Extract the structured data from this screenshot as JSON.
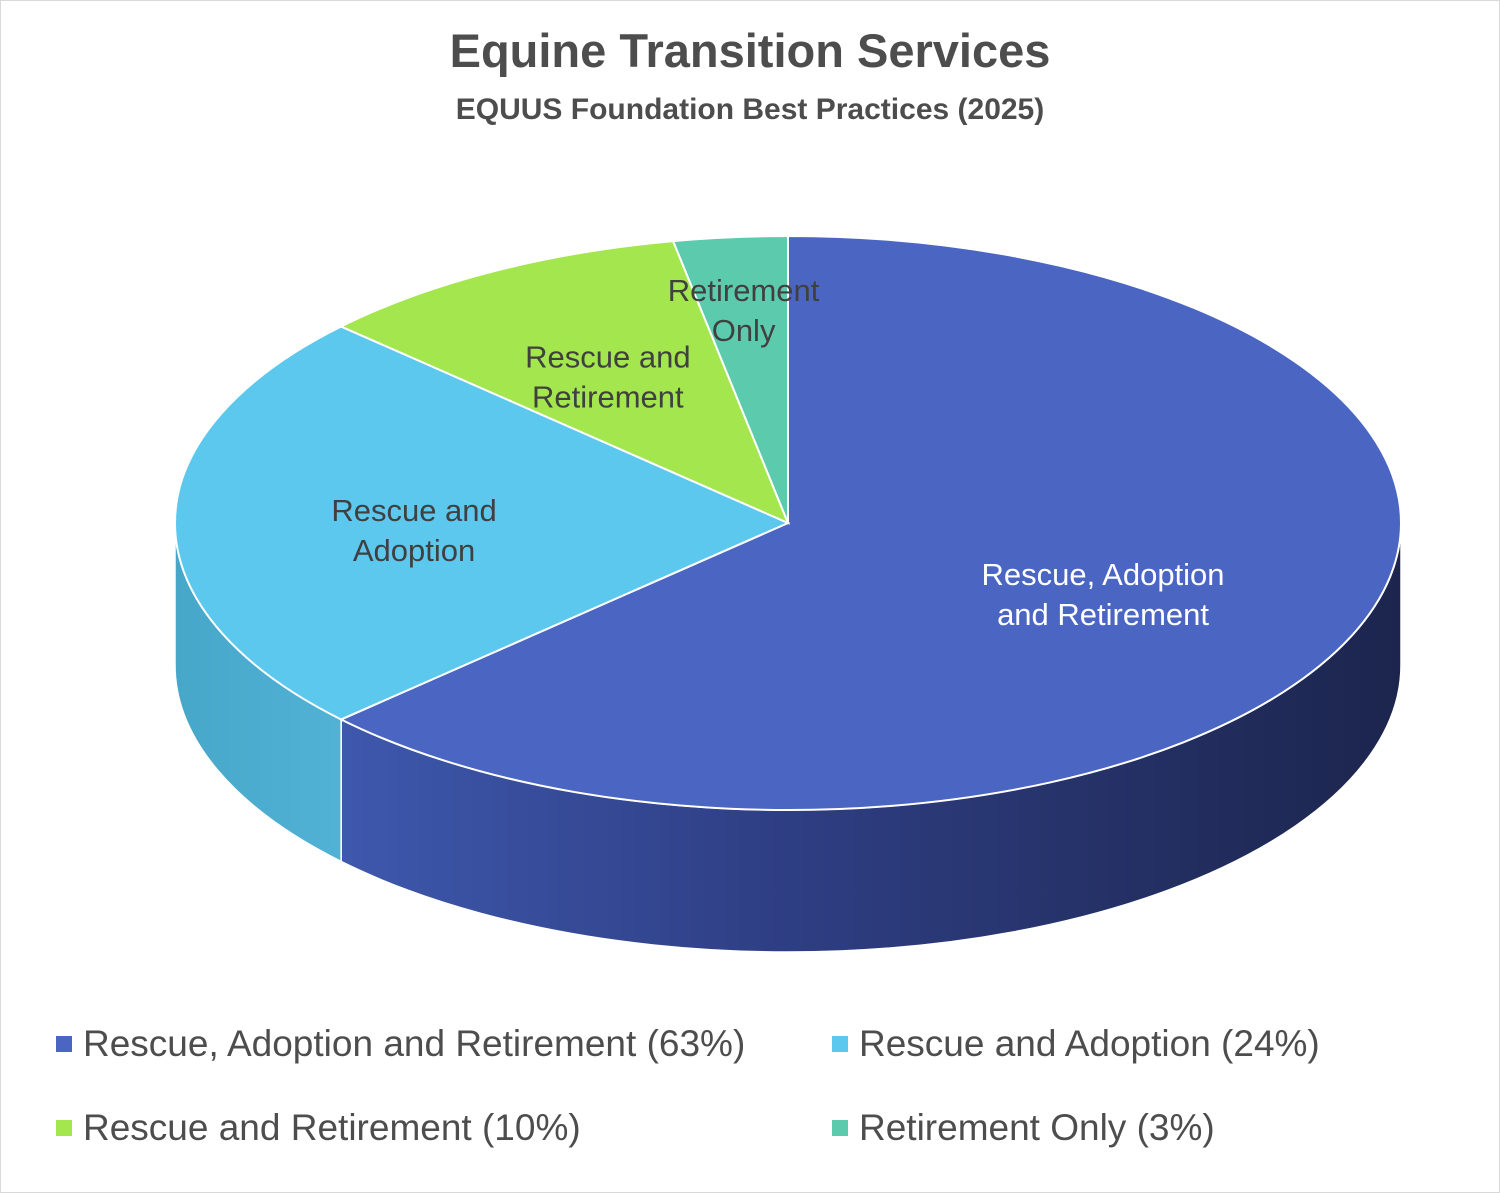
{
  "chart_data": {
    "type": "pie",
    "title": "Equine Transition Services",
    "subtitle": "EQUUS Foundation Best Practices (2025)",
    "categories": [
      "Rescue, Adoption and Retirement",
      "Rescue and Adoption",
      "Rescue and Retirement",
      "Retirement Only"
    ],
    "values": [
      63,
      24,
      10,
      3
    ],
    "unit": "%",
    "colors": [
      "#4b65c3",
      "#5cc8ee",
      "#a3e64d",
      "#5ccbad"
    ],
    "slice_labels": [
      [
        "Rescue, Adoption",
        "and Retirement"
      ],
      [
        "Rescue and",
        "Adoption"
      ],
      [
        "Rescue and",
        "Retirement"
      ],
      [
        "Retirement",
        "Only"
      ]
    ],
    "legend": {
      "placement": "bottom",
      "entries": [
        "Rescue, Adoption and Retirement (63%)",
        "Rescue and Adoption (24%)",
        "Rescue and Retirement (10%)",
        "Retirement Only (3%)"
      ]
    },
    "style": "3d-pie"
  }
}
